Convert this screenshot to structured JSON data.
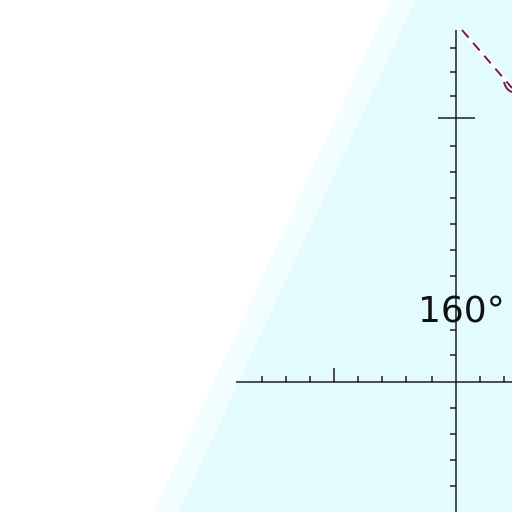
{
  "map": {
    "colors": {
      "land": "#ffffff",
      "ocean": "#e4fbfe",
      "graticule": "#1a1a1a",
      "track": "#7a1f3d"
    },
    "labels": {
      "meridian": "160°"
    },
    "features": [
      {
        "name": "coastline",
        "type": "boundary"
      },
      {
        "name": "meridian-160",
        "type": "graticule"
      },
      {
        "name": "parallel",
        "type": "graticule"
      },
      {
        "name": "dashed-track",
        "type": "route"
      }
    ]
  }
}
